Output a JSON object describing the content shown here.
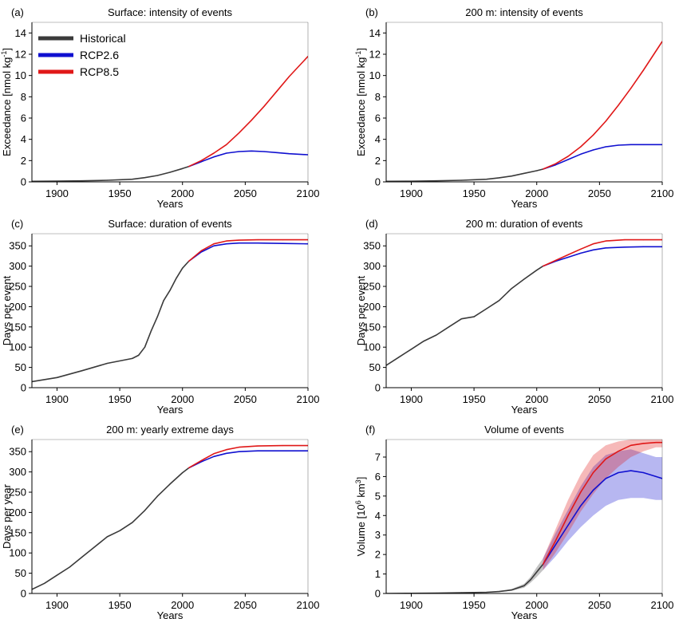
{
  "colors": {
    "historical": "#3a3a3a",
    "rcp26": "#1010d0",
    "rcp85": "#e01818"
  },
  "legend": [
    {
      "name": "Historical",
      "color_key": "historical"
    },
    {
      "name": "RCP2.6",
      "color_key": "rcp26"
    },
    {
      "name": "RCP8.5",
      "color_key": "rcp85"
    }
  ],
  "chart_data": [
    {
      "type": "line",
      "panel_label": "(a)",
      "title": "Surface: intensity of events",
      "xlabel": "Years",
      "ylabel_main": "Exceedance [nmol kg",
      "ylabel_sup": "-1",
      "ylabel_end": "]",
      "xlim": [
        1880,
        2100
      ],
      "ylim": [
        0,
        15
      ],
      "xticks": [
        1900,
        1950,
        2000,
        2050,
        2100
      ],
      "yticks": [
        0,
        2,
        4,
        6,
        8,
        10,
        12,
        14
      ],
      "legend_position": "top-left",
      "series": [
        {
          "name": "Historical",
          "color_key": "historical",
          "x": [
            1880,
            1900,
            1920,
            1940,
            1960,
            1970,
            1980,
            1990,
            2000,
            2005
          ],
          "y": [
            0.05,
            0.07,
            0.1,
            0.15,
            0.25,
            0.4,
            0.6,
            0.9,
            1.25,
            1.45
          ]
        },
        {
          "name": "RCP2.6",
          "color_key": "rcp26",
          "x": [
            2005,
            2015,
            2025,
            2035,
            2045,
            2055,
            2065,
            2075,
            2085,
            2100
          ],
          "y": [
            1.45,
            1.9,
            2.35,
            2.7,
            2.85,
            2.9,
            2.85,
            2.75,
            2.65,
            2.55
          ]
        },
        {
          "name": "RCP8.5",
          "color_key": "rcp85",
          "x": [
            2005,
            2015,
            2025,
            2035,
            2045,
            2055,
            2065,
            2075,
            2085,
            2100
          ],
          "y": [
            1.45,
            2.0,
            2.7,
            3.5,
            4.6,
            5.8,
            7.1,
            8.5,
            9.9,
            11.8
          ]
        }
      ]
    },
    {
      "type": "line",
      "panel_label": "(b)",
      "title": "200 m: intensity of events",
      "xlabel": "Years",
      "ylabel_main": "Exceedance [nmol kg",
      "ylabel_sup": "-1",
      "ylabel_end": "]",
      "xlim": [
        1880,
        2100
      ],
      "ylim": [
        0,
        15
      ],
      "xticks": [
        1900,
        1950,
        2000,
        2050,
        2100
      ],
      "yticks": [
        0,
        2,
        4,
        6,
        8,
        10,
        12,
        14
      ],
      "series": [
        {
          "name": "Historical",
          "color_key": "historical",
          "x": [
            1880,
            1900,
            1920,
            1940,
            1960,
            1970,
            1980,
            1990,
            2000,
            2005
          ],
          "y": [
            0.05,
            0.06,
            0.1,
            0.15,
            0.25,
            0.38,
            0.55,
            0.8,
            1.05,
            1.2
          ]
        },
        {
          "name": "RCP2.6",
          "color_key": "rcp26",
          "x": [
            2005,
            2015,
            2025,
            2035,
            2045,
            2055,
            2065,
            2075,
            2085,
            2100
          ],
          "y": [
            1.2,
            1.6,
            2.1,
            2.6,
            3.0,
            3.3,
            3.45,
            3.5,
            3.5,
            3.5
          ]
        },
        {
          "name": "RCP8.5",
          "color_key": "rcp85",
          "x": [
            2005,
            2015,
            2025,
            2035,
            2045,
            2055,
            2065,
            2075,
            2085,
            2100
          ],
          "y": [
            1.2,
            1.7,
            2.4,
            3.3,
            4.4,
            5.7,
            7.2,
            8.8,
            10.5,
            13.2
          ]
        }
      ]
    },
    {
      "type": "line",
      "panel_label": "(c)",
      "title": "Surface: duration of events",
      "xlabel": "Years",
      "ylabel_main": "Days per event",
      "xlim": [
        1880,
        2100
      ],
      "ylim": [
        0,
        380
      ],
      "xticks": [
        1900,
        1950,
        2000,
        2050,
        2100
      ],
      "yticks": [
        0,
        50,
        100,
        150,
        200,
        250,
        300,
        350
      ],
      "series": [
        {
          "name": "Historical",
          "color_key": "historical",
          "x": [
            1880,
            1900,
            1920,
            1940,
            1960,
            1965,
            1970,
            1975,
            1980,
            1985,
            1990,
            1995,
            2000,
            2005
          ],
          "y": [
            15,
            25,
            42,
            60,
            72,
            80,
            100,
            140,
            175,
            215,
            240,
            270,
            295,
            312
          ]
        },
        {
          "name": "RCP2.6",
          "color_key": "rcp26",
          "x": [
            2005,
            2015,
            2025,
            2035,
            2045,
            2060,
            2080,
            2100
          ],
          "y": [
            312,
            335,
            350,
            355,
            357,
            357,
            356,
            355
          ]
        },
        {
          "name": "RCP8.5",
          "color_key": "rcp85",
          "x": [
            2005,
            2015,
            2025,
            2035,
            2045,
            2060,
            2080,
            2100
          ],
          "y": [
            312,
            338,
            355,
            362,
            364,
            365,
            365,
            365
          ]
        }
      ]
    },
    {
      "type": "line",
      "panel_label": "(d)",
      "title": "200 m: duration of events",
      "xlabel": "Years",
      "ylabel_main": "Days per event",
      "xlim": [
        1880,
        2100
      ],
      "ylim": [
        0,
        380
      ],
      "xticks": [
        1900,
        1950,
        2000,
        2050,
        2100
      ],
      "yticks": [
        0,
        50,
        100,
        150,
        200,
        250,
        300,
        350
      ],
      "series": [
        {
          "name": "Historical",
          "color_key": "historical",
          "x": [
            1880,
            1890,
            1900,
            1910,
            1920,
            1930,
            1940,
            1950,
            1960,
            1970,
            1980,
            1990,
            2000,
            2005
          ],
          "y": [
            55,
            75,
            95,
            115,
            130,
            150,
            170,
            175,
            195,
            215,
            245,
            268,
            290,
            300
          ]
        },
        {
          "name": "RCP2.6",
          "color_key": "rcp26",
          "x": [
            2005,
            2015,
            2025,
            2035,
            2045,
            2055,
            2070,
            2085,
            2100
          ],
          "y": [
            300,
            312,
            322,
            332,
            340,
            345,
            347,
            348,
            348
          ]
        },
        {
          "name": "RCP8.5",
          "color_key": "rcp85",
          "x": [
            2005,
            2015,
            2025,
            2035,
            2045,
            2055,
            2070,
            2085,
            2100
          ],
          "y": [
            300,
            314,
            328,
            342,
            355,
            362,
            365,
            365,
            365
          ]
        }
      ]
    },
    {
      "type": "line",
      "panel_label": "(e)",
      "title": "200 m: yearly extreme days",
      "xlabel": "Years",
      "ylabel_main": "Days per year",
      "xlim": [
        1880,
        2100
      ],
      "ylim": [
        0,
        380
      ],
      "xticks": [
        1900,
        1950,
        2000,
        2050,
        2100
      ],
      "yticks": [
        0,
        50,
        100,
        150,
        200,
        250,
        300,
        350
      ],
      "series": [
        {
          "name": "Historical",
          "color_key": "historical",
          "x": [
            1880,
            1890,
            1900,
            1910,
            1920,
            1930,
            1940,
            1950,
            1960,
            1970,
            1980,
            1990,
            2000,
            2005
          ],
          "y": [
            10,
            25,
            45,
            65,
            90,
            115,
            140,
            155,
            175,
            205,
            240,
            270,
            298,
            310
          ]
        },
        {
          "name": "RCP2.6",
          "color_key": "rcp26",
          "x": [
            2005,
            2015,
            2025,
            2035,
            2045,
            2060,
            2080,
            2100
          ],
          "y": [
            310,
            325,
            338,
            346,
            350,
            352,
            352,
            352
          ]
        },
        {
          "name": "RCP8.5",
          "color_key": "rcp85",
          "x": [
            2005,
            2015,
            2025,
            2035,
            2045,
            2060,
            2080,
            2100
          ],
          "y": [
            310,
            328,
            345,
            355,
            361,
            364,
            365,
            365
          ]
        }
      ]
    },
    {
      "type": "area",
      "panel_label": "(f)",
      "title": "Volume of events",
      "xlabel": "Years",
      "ylabel_main": "Volume [10",
      "ylabel_sup": "6",
      "ylabel_mid": " km",
      "ylabel_sup2": "3",
      "ylabel_end": "]",
      "xlim": [
        1880,
        2100
      ],
      "ylim": [
        0,
        7.9
      ],
      "xticks": [
        1900,
        1950,
        2000,
        2050,
        2100
      ],
      "yticks": [
        0,
        1,
        2,
        3,
        4,
        5,
        6,
        7
      ],
      "series": [
        {
          "name": "Historical",
          "color_key": "historical",
          "x": [
            1880,
            1900,
            1920,
            1940,
            1960,
            1970,
            1980,
            1990,
            1995,
            2000,
            2005
          ],
          "y": [
            0,
            0.01,
            0.02,
            0.04,
            0.06,
            0.1,
            0.18,
            0.4,
            0.7,
            1.1,
            1.5
          ],
          "lower": [
            0,
            0.01,
            0.02,
            0.03,
            0.05,
            0.08,
            0.14,
            0.3,
            0.55,
            0.85,
            1.2
          ],
          "upper": [
            0,
            0.02,
            0.03,
            0.05,
            0.08,
            0.13,
            0.23,
            0.5,
            0.85,
            1.35,
            1.8
          ]
        },
        {
          "name": "RCP2.6",
          "color_key": "rcp26",
          "x": [
            2005,
            2015,
            2025,
            2035,
            2045,
            2055,
            2065,
            2075,
            2085,
            2095,
            2100
          ],
          "y": [
            1.5,
            2.5,
            3.5,
            4.5,
            5.3,
            5.9,
            6.2,
            6.3,
            6.2,
            6.0,
            5.9
          ],
          "lower": [
            1.2,
            1.9,
            2.7,
            3.4,
            4.0,
            4.5,
            4.8,
            4.9,
            4.9,
            4.8,
            4.8
          ],
          "upper": [
            1.8,
            3.1,
            4.3,
            5.5,
            6.5,
            7.1,
            7.3,
            7.4,
            7.2,
            7.0,
            7.0
          ]
        },
        {
          "name": "RCP8.5",
          "color_key": "rcp85",
          "x": [
            2005,
            2015,
            2025,
            2035,
            2045,
            2055,
            2065,
            2075,
            2085,
            2095,
            2100
          ],
          "y": [
            1.5,
            2.7,
            4.0,
            5.2,
            6.2,
            6.9,
            7.3,
            7.6,
            7.7,
            7.75,
            7.75
          ],
          "lower": [
            1.2,
            2.1,
            3.1,
            4.2,
            5.1,
            5.9,
            6.5,
            7.0,
            7.3,
            7.5,
            7.5
          ],
          "upper": [
            1.8,
            3.3,
            4.8,
            6.1,
            7.1,
            7.6,
            7.8,
            7.9,
            7.9,
            7.9,
            7.9
          ]
        }
      ]
    }
  ]
}
